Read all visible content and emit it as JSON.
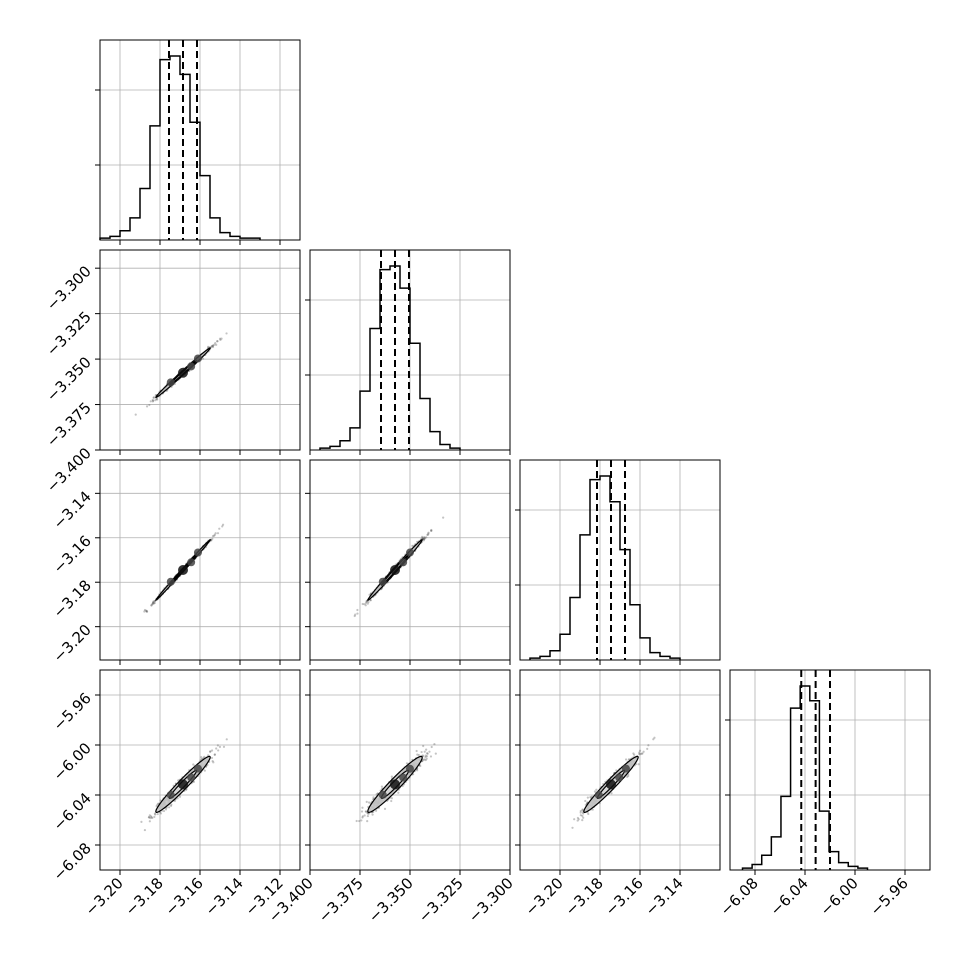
{
  "chart_data": {
    "type": "corner",
    "grid": true,
    "colors": {
      "line": "#000000",
      "grid": "#b0b0b0",
      "points": "#555555",
      "contour_fill": "#c8c8c8"
    },
    "parameters": [
      {
        "index": 0,
        "lim": [
          -3.21,
          -3.11
        ],
        "ticks": [
          -3.2,
          -3.18,
          -3.16,
          -3.14,
          -3.12
        ],
        "tick_labels": [
          "−3.20",
          "−3.18",
          "−3.16",
          "−3.14",
          "−3.12"
        ],
        "mean": -3.1685,
        "sigma": 0.0068,
        "quantiles": [
          -3.1755,
          -3.1685,
          -3.1615
        ]
      },
      {
        "index": 1,
        "lim": [
          -3.4,
          -3.3
        ],
        "ticks": [
          -3.4,
          -3.375,
          -3.35,
          -3.325,
          -3.3
        ],
        "tick_labels": [
          "−3.400",
          "−3.375",
          "−3.350",
          "−3.325",
          "−3.300"
        ],
        "mean": -3.3575,
        "sigma": 0.0068,
        "quantiles": [
          -3.3645,
          -3.3575,
          -3.3505
        ]
      },
      {
        "index": 2,
        "lim": [
          -3.22,
          -3.12
        ],
        "ticks": [
          -3.2,
          -3.18,
          -3.16,
          -3.14
        ],
        "tick_labels": [
          "−3.20",
          "−3.18",
          "−3.16",
          "−3.14"
        ],
        "mean": -3.1745,
        "sigma": 0.0068,
        "quantiles": [
          -3.1815,
          -3.1745,
          -3.1675
        ]
      },
      {
        "index": 3,
        "lim": [
          -6.1,
          -5.94
        ],
        "ticks": [
          -6.08,
          -6.04,
          -6.0,
          -5.96
        ],
        "tick_labels": [
          "−6.08",
          "−6.04",
          "−6.00",
          "−5.96"
        ],
        "mean": -6.0315,
        "sigma": 0.0112,
        "quantiles": [
          -6.043,
          -6.0315,
          -6.02
        ]
      }
    ],
    "y_axis_labels": {
      "row1": {
        "lim": [
          -3.4,
          -3.29
        ],
        "ticks": [
          -3.3,
          -3.325,
          -3.35,
          -3.375,
          -3.4
        ],
        "tick_labels": [
          "−3.300",
          "−3.325",
          "−3.350",
          "−3.375",
          "−3.400"
        ]
      },
      "row2": {
        "lim": [
          -3.215,
          -3.125
        ],
        "ticks": [
          -3.14,
          -3.16,
          -3.18,
          -3.2
        ],
        "tick_labels": [
          "−3.14",
          "−3.16",
          "−3.18",
          "−3.20"
        ]
      },
      "row3": {
        "lim": [
          -6.1,
          -5.94
        ],
        "ticks": [
          -5.96,
          -6.0,
          -6.04,
          -6.08
        ],
        "tick_labels": [
          "−5.96",
          "−6.00",
          "−6.04",
          "−6.08"
        ]
      }
    },
    "histograms": [
      {
        "param": 0,
        "bin_counts": [
          1,
          2,
          5,
          12,
          28,
          62,
          98,
          100,
          90,
          64,
          35,
          12,
          4,
          2,
          1,
          1
        ],
        "bin_range": [
          -3.21,
          -3.13
        ]
      },
      {
        "param": 1,
        "bin_counts": [
          1,
          2,
          5,
          12,
          32,
          66,
          98,
          100,
          88,
          58,
          28,
          10,
          3,
          1
        ],
        "bin_range": [
          -3.395,
          -3.325
        ]
      },
      {
        "param": 2,
        "bin_counts": [
          1,
          2,
          5,
          14,
          34,
          68,
          98,
          100,
          86,
          60,
          30,
          12,
          4,
          2,
          1
        ],
        "bin_range": [
          -3.215,
          -3.14
        ]
      },
      {
        "param": 3,
        "bin_counts": [
          1,
          3,
          8,
          18,
          40,
          88,
          100,
          92,
          32,
          10,
          4,
          2,
          1
        ],
        "bin_range": [
          -6.09,
          -5.99
        ]
      }
    ],
    "correlations": {
      "0-1": 0.995,
      "0-2": 0.998,
      "1-2": 0.995,
      "0-3": 0.97,
      "1-3": 0.96,
      "2-3": 0.97
    }
  }
}
